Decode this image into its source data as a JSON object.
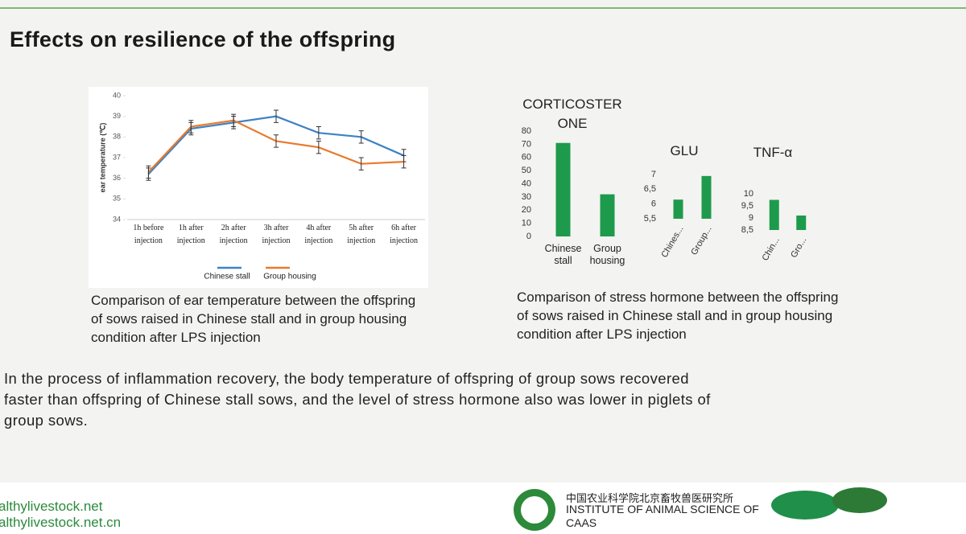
{
  "title": "Effects on resilience of the offspring",
  "chart_data": [
    {
      "type": "line",
      "y_label": "ear temperature (℃)",
      "categories": [
        "1h before injection",
        "1h after injection",
        "2h after injection",
        "3h after injection",
        "4h after injection",
        "5h after injection",
        "6h after injection"
      ],
      "series": [
        {
          "name": "Chinese stall",
          "color": "#3f82c4",
          "values": [
            36.2,
            38.4,
            38.7,
            39.0,
            38.2,
            38.0,
            37.1
          ],
          "errors": [
            0.3,
            0.3,
            0.3,
            0.3,
            0.3,
            0.3,
            0.3
          ]
        },
        {
          "name": "Group housing",
          "color": "#ea7a2c",
          "values": [
            36.3,
            38.5,
            38.8,
            37.8,
            37.5,
            36.7,
            36.8
          ],
          "errors": [
            0.3,
            0.3,
            0.3,
            0.3,
            0.3,
            0.3,
            0.3
          ]
        }
      ],
      "ylim": [
        34,
        40
      ],
      "yticks": [
        34,
        35,
        36,
        37,
        38,
        39,
        40
      ]
    },
    {
      "type": "bar",
      "title": "CORTICOSTERONE",
      "categories": [
        "Chinese stall",
        "Group housing"
      ],
      "values": [
        71,
        32
      ],
      "color": "#1e9a4c",
      "ylim": [
        0,
        80
      ],
      "yticks": [
        0,
        10,
        20,
        30,
        40,
        50,
        60,
        70,
        80
      ]
    },
    {
      "type": "bar",
      "title": "GLU",
      "categories": [
        "Chines...",
        "Group..."
      ],
      "values": [
        6.15,
        6.95
      ],
      "color": "#1e9a4c",
      "ylim": [
        5.5,
        7
      ],
      "yticks": [
        {
          "value": 5.5,
          "label": "5,5"
        },
        6,
        {
          "value": 6.5,
          "label": "6,5"
        },
        7
      ]
    },
    {
      "type": "bar",
      "title": "TNF-α",
      "categories": [
        "Chin...",
        "Gro..."
      ],
      "values": [
        9.75,
        9.1
      ],
      "color": "#1e9a4c",
      "ylim": [
        8.5,
        10
      ],
      "yticks": [
        {
          "value": 8.5,
          "label": "8,5"
        },
        9,
        {
          "value": 9.5,
          "label": "9,5"
        },
        10
      ]
    }
  ],
  "captions": [
    "Comparison of ear temperature between the offspring of sows raised in Chinese stall and in group housing condition after LPS injection",
    "Comparison of stress hormone between the offspring of sows raised in Chinese stall and in group housing condition after LPS injection"
  ],
  "body": "In the process of inflammation recovery, the body temperature of offspring of group sows recovered faster than offspring of Chinese stall sows, and the level of stress hormone also was lower in piglets of group sows.",
  "footer": {
    "links": [
      "althylivestock.net",
      "althylivestock.net.cn"
    ],
    "institute_cn": "中国农业科学院北京畜牧兽医研究所",
    "institute_en": "INSTITUTE OF ANIMAL SCIENCE OF CAAS"
  }
}
